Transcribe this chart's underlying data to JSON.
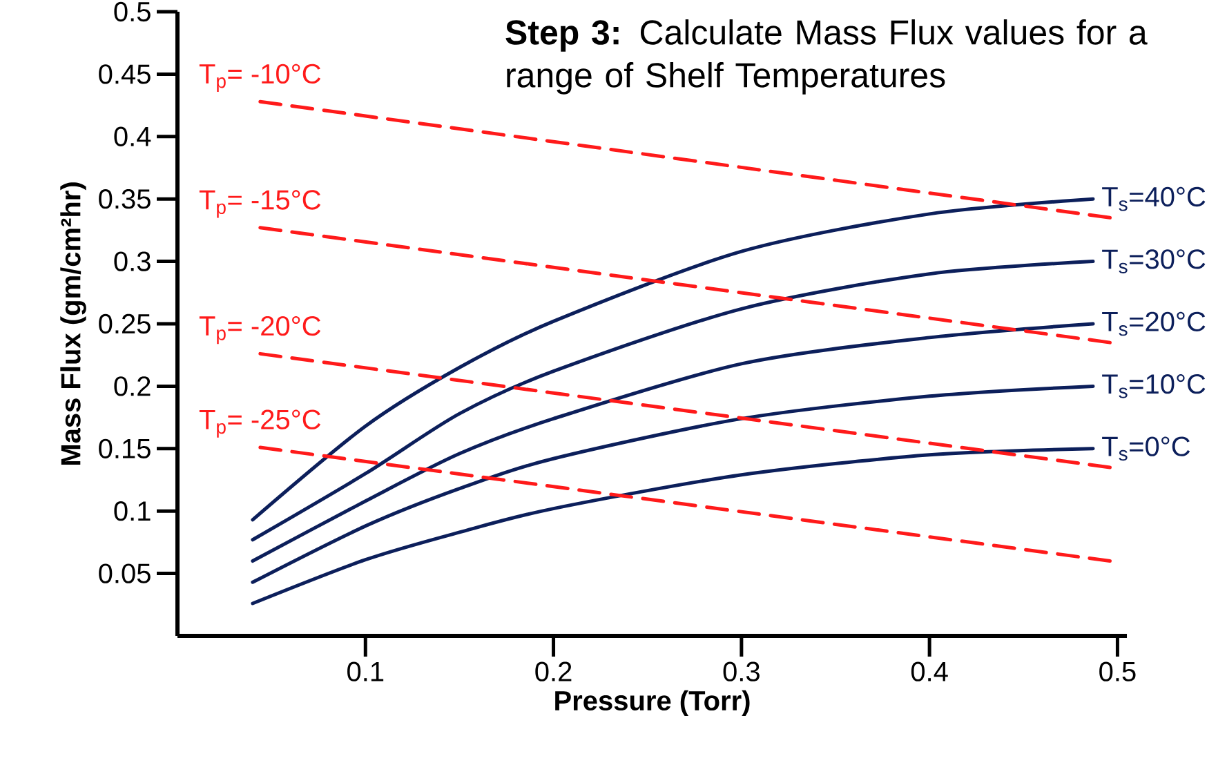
{
  "chart_data": {
    "type": "line",
    "title": "**Step 3:** Calculate Mass Flux values for a range of Shelf Temperatures",
    "xlabel": "Pressure (Torr)",
    "ylabel": "Mass Flux (gm/cm²hr)",
    "xlim": [
      0,
      0.505
    ],
    "ylim": [
      0,
      0.5
    ],
    "xticks": [
      0.1,
      0.2,
      0.3,
      0.4,
      0.5
    ],
    "yticks": [
      0.05,
      0.1,
      0.15,
      0.2,
      0.25,
      0.3,
      0.35,
      0.4,
      0.45,
      0.5
    ],
    "grid": false,
    "series": [
      {
        "name": "T$_{s}$=40°C",
        "color": "#0c1f5b",
        "line_style": "solid",
        "x": [
          0.04,
          0.1,
          0.15,
          0.2,
          0.3,
          0.4,
          0.487
        ],
        "values": [
          0.093,
          0.168,
          0.215,
          0.252,
          0.308,
          0.338,
          0.35
        ]
      },
      {
        "name": "T$_{s}$=30°C",
        "color": "#0c1f5b",
        "line_style": "solid",
        "x": [
          0.04,
          0.1,
          0.15,
          0.2,
          0.3,
          0.4,
          0.487
        ],
        "values": [
          0.077,
          0.13,
          0.178,
          0.212,
          0.262,
          0.29,
          0.3
        ]
      },
      {
        "name": "T$_{s}$=20°C",
        "color": "#0c1f5b",
        "line_style": "solid",
        "x": [
          0.04,
          0.1,
          0.15,
          0.2,
          0.3,
          0.4,
          0.487
        ],
        "values": [
          0.06,
          0.108,
          0.146,
          0.174,
          0.218,
          0.239,
          0.25
        ]
      },
      {
        "name": "T$_{s}$=10°C",
        "color": "#0c1f5b",
        "line_style": "solid",
        "x": [
          0.04,
          0.1,
          0.15,
          0.2,
          0.3,
          0.4,
          0.487
        ],
        "values": [
          0.043,
          0.088,
          0.118,
          0.142,
          0.174,
          0.192,
          0.2
        ]
      },
      {
        "name": "T$_{s}$=0°C",
        "color": "#0c1f5b",
        "line_style": "solid",
        "x": [
          0.04,
          0.1,
          0.15,
          0.2,
          0.3,
          0.4,
          0.487
        ],
        "values": [
          0.026,
          0.061,
          0.083,
          0.102,
          0.129,
          0.145,
          0.15
        ]
      },
      {
        "name": "T$_{p}$= -10°C",
        "color": "#ff1a1a",
        "line_style": "dashed",
        "x": [
          0.044,
          0.496
        ],
        "values": [
          0.428,
          0.335
        ]
      },
      {
        "name": "T$_{p}$= -15°C",
        "color": "#ff1a1a",
        "line_style": "dashed",
        "x": [
          0.044,
          0.496
        ],
        "values": [
          0.327,
          0.235
        ]
      },
      {
        "name": "T$_{p}$= -20°C",
        "color": "#ff1a1a",
        "line_style": "dashed",
        "x": [
          0.044,
          0.496
        ],
        "values": [
          0.226,
          0.135
        ]
      },
      {
        "name": "T$_{p}$= -25°C",
        "color": "#ff1a1a",
        "line_style": "dashed",
        "x": [
          0.044,
          0.496
        ],
        "values": [
          0.151,
          0.06
        ]
      }
    ]
  }
}
